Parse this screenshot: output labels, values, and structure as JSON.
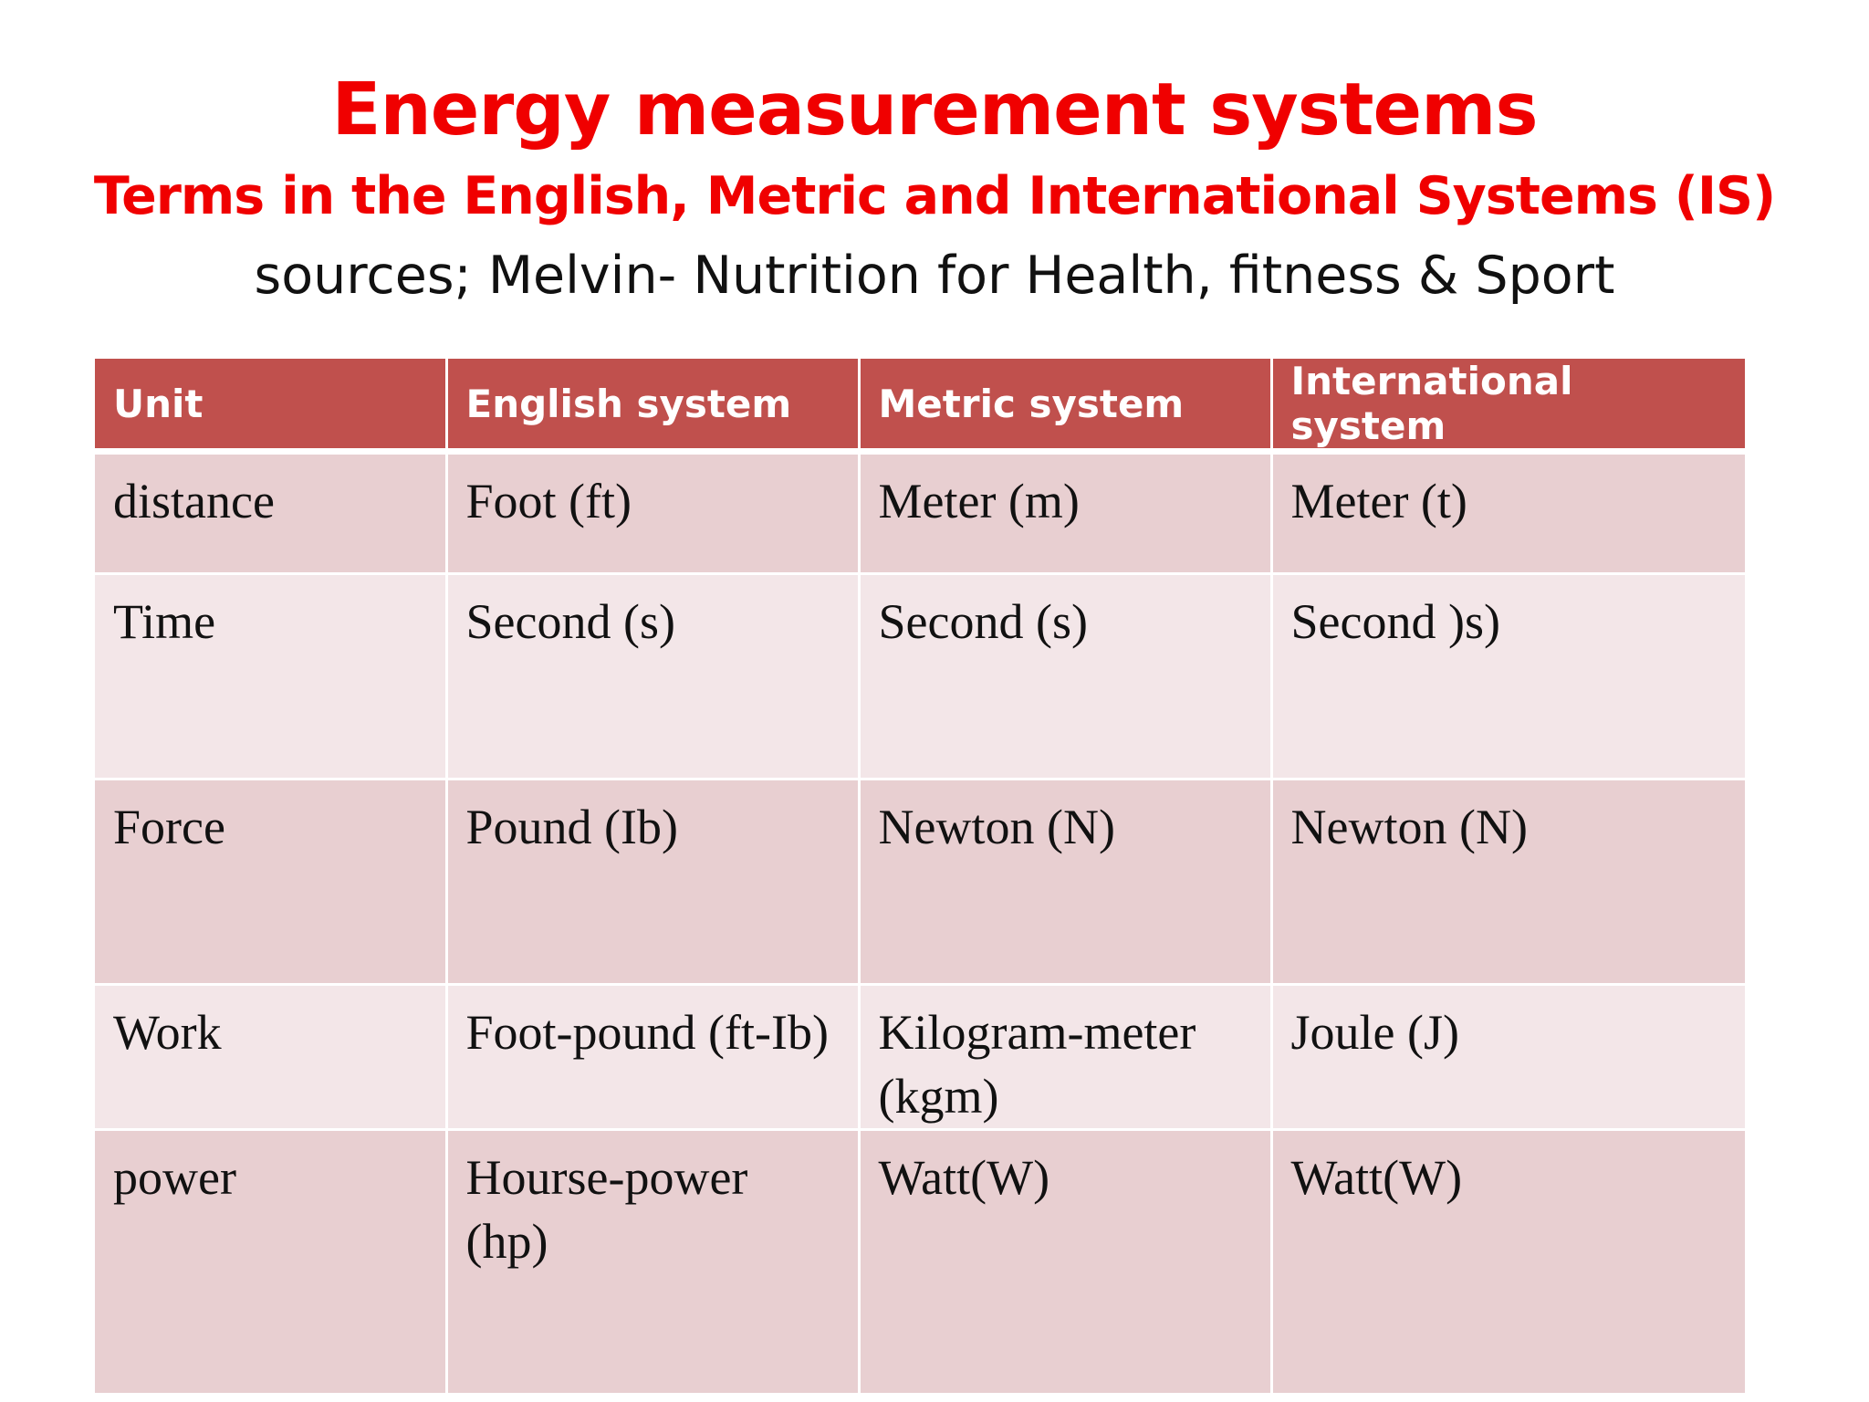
{
  "slide": {
    "title": "Energy measurement systems",
    "subtitle": "Terms in the English, Metric and International Systems (IS)",
    "source": "sources; Melvin- Nutrition for Health, fitness & Sport"
  },
  "table": {
    "headers": [
      "Unit",
      "English system",
      "Metric system",
      "International system"
    ],
    "rows": [
      [
        "distance",
        "Foot (ft)",
        "Meter (m)",
        "Meter (t)"
      ],
      [
        "Time",
        "Second (s)",
        "Second (s)",
        "Second )s)"
      ],
      [
        "Force",
        "Pound (Ib)",
        "Newton (N)",
        "Newton (N)"
      ],
      [
        "Work",
        "Foot-pound (ft-Ib)",
        "Kilogram-meter (kgm)",
        "Joule (J)"
      ],
      [
        "power",
        "Hourse-power (hp)",
        "Watt(W)",
        "Watt(W)"
      ]
    ]
  },
  "colors": {
    "title": "#f00000",
    "header_bg": "#c0504d",
    "row_dark": "#e8cfd1",
    "row_light": "#f3e6e8"
  }
}
